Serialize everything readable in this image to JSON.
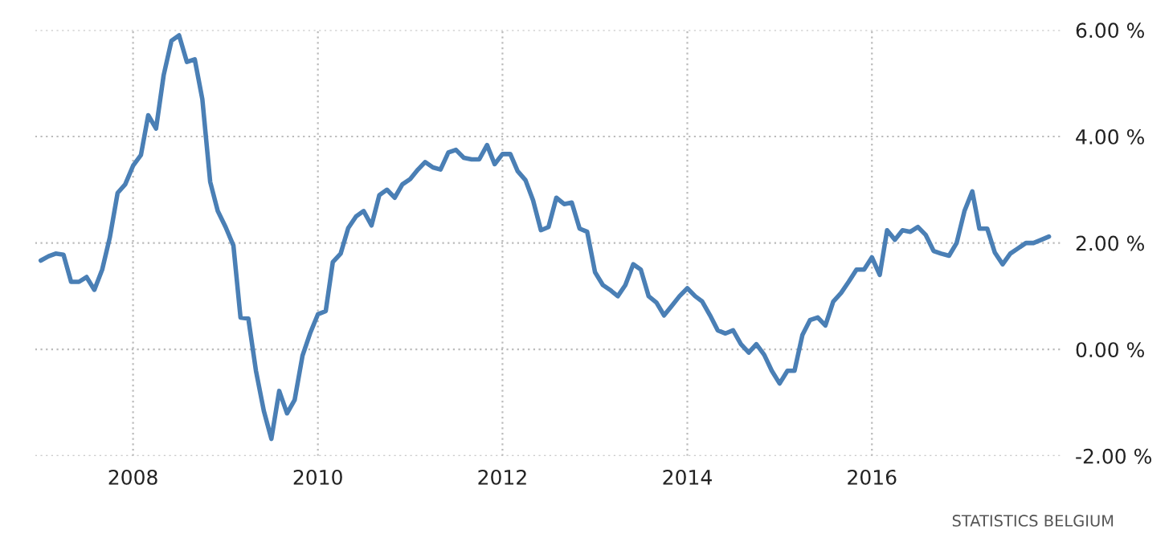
{
  "chart_data": {
    "type": "line",
    "x": [
      "2007-01",
      "2007-02",
      "2007-03",
      "2007-04",
      "2007-05",
      "2007-06",
      "2007-07",
      "2007-08",
      "2007-09",
      "2007-10",
      "2007-11",
      "2007-12",
      "2008-01",
      "2008-02",
      "2008-03",
      "2008-04",
      "2008-05",
      "2008-06",
      "2008-07",
      "2008-08",
      "2008-09",
      "2008-10",
      "2008-11",
      "2008-12",
      "2009-01",
      "2009-02",
      "2009-03",
      "2009-04",
      "2009-05",
      "2009-06",
      "2009-07",
      "2009-08",
      "2009-09",
      "2009-10",
      "2009-11",
      "2009-12",
      "2010-01",
      "2010-02",
      "2010-03",
      "2010-04",
      "2010-05",
      "2010-06",
      "2010-07",
      "2010-08",
      "2010-09",
      "2010-10",
      "2010-11",
      "2010-12",
      "2011-01",
      "2011-02",
      "2011-03",
      "2011-04",
      "2011-05",
      "2011-06",
      "2011-07",
      "2011-08",
      "2011-09",
      "2011-10",
      "2011-11",
      "2011-12",
      "2012-01",
      "2012-02",
      "2012-03",
      "2012-04",
      "2012-05",
      "2012-06",
      "2012-07",
      "2012-08",
      "2012-09",
      "2012-10",
      "2012-11",
      "2012-12",
      "2013-01",
      "2013-02",
      "2013-03",
      "2013-04",
      "2013-05",
      "2013-06",
      "2013-07",
      "2013-08",
      "2013-09",
      "2013-10",
      "2013-11",
      "2013-12",
      "2014-01",
      "2014-02",
      "2014-03",
      "2014-04",
      "2014-05",
      "2014-06",
      "2014-07",
      "2014-08",
      "2014-09",
      "2014-10",
      "2014-11",
      "2014-12",
      "2015-01",
      "2015-02",
      "2015-03",
      "2015-04",
      "2015-05",
      "2015-06",
      "2015-07",
      "2015-08",
      "2015-09",
      "2015-10",
      "2015-11",
      "2015-12",
      "2016-01",
      "2016-02",
      "2016-03",
      "2016-04",
      "2016-05",
      "2016-06",
      "2016-07",
      "2016-08",
      "2016-09",
      "2016-10",
      "2016-11",
      "2016-12",
      "2017-01",
      "2017-02",
      "2017-03",
      "2017-04",
      "2017-05",
      "2017-06",
      "2017-07",
      "2017-08",
      "2017-09",
      "2017-10",
      "2017-11",
      "2017-12"
    ],
    "series": [
      {
        "color": "#4a7fb5",
        "values": [
          1.67,
          1.75,
          1.8,
          1.78,
          1.27,
          1.27,
          1.36,
          1.12,
          1.5,
          2.1,
          2.94,
          3.1,
          3.45,
          3.65,
          4.4,
          4.15,
          5.15,
          5.8,
          5.9,
          5.4,
          5.45,
          4.7,
          3.15,
          2.6,
          2.3,
          1.95,
          0.6,
          0.58,
          -0.4,
          -1.15,
          -1.68,
          -0.78,
          -1.2,
          -0.95,
          -0.12,
          0.3,
          0.66,
          0.72,
          1.64,
          1.8,
          2.28,
          2.5,
          2.6,
          2.33,
          2.9,
          3.0,
          2.85,
          3.1,
          3.2,
          3.38,
          3.52,
          3.42,
          3.38,
          3.7,
          3.75,
          3.6,
          3.57,
          3.57,
          3.84,
          3.48,
          3.67,
          3.67,
          3.35,
          3.18,
          2.8,
          2.24,
          2.3,
          2.85,
          2.73,
          2.76,
          2.27,
          2.21,
          1.45,
          1.21,
          1.12,
          1.0,
          1.21,
          1.6,
          1.5,
          1.0,
          0.88,
          0.64,
          0.82,
          1.0,
          1.15,
          1.0,
          0.9,
          0.64,
          0.36,
          0.3,
          0.36,
          0.1,
          -0.06,
          0.1,
          -0.1,
          -0.4,
          -0.64,
          -0.4,
          -0.4,
          0.27,
          0.55,
          0.6,
          0.45,
          0.9,
          1.06,
          1.27,
          1.5,
          1.5,
          1.73,
          1.4,
          2.24,
          2.06,
          2.24,
          2.21,
          2.3,
          2.15,
          1.85,
          1.8,
          1.76,
          2.0,
          2.6,
          2.97,
          2.27,
          2.27,
          1.82,
          1.6,
          1.8,
          1.9,
          2.0,
          2.0,
          2.06,
          2.12
        ]
      }
    ],
    "xlim": [
      "2006-12-10",
      "2018-01-20"
    ],
    "xticks": [
      {
        "value": "2008-01-01",
        "label": "2008"
      },
      {
        "value": "2010-01-01",
        "label": "2010"
      },
      {
        "value": "2012-01-01",
        "label": "2012"
      },
      {
        "value": "2014-01-01",
        "label": "2014"
      },
      {
        "value": "2016-01-01",
        "label": "2016"
      }
    ],
    "ylim": [
      -2,
      6
    ],
    "yticks": [
      {
        "value": -2,
        "label": "-2.00 %"
      },
      {
        "value": 0,
        "label": "0.00 %"
      },
      {
        "value": 2,
        "label": "2.00 %"
      },
      {
        "value": 4,
        "label": "4.00 %"
      },
      {
        "value": 6,
        "label": "6.00 %"
      }
    ],
    "grid": true,
    "annotations": [
      "STATISTICS BELGIUM"
    ]
  }
}
